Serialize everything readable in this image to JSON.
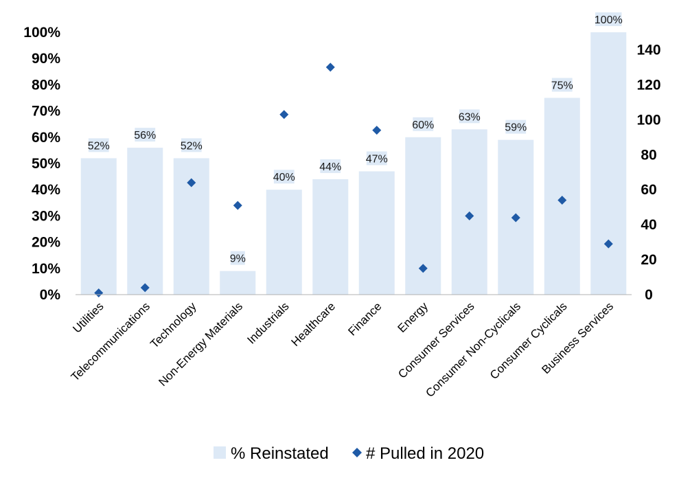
{
  "chart_data": {
    "type": "bar",
    "categories": [
      "Utilities",
      "Telecommunications",
      "Technology",
      "Non-Energy Materials",
      "Industrials",
      "Healthcare",
      "Finance",
      "Energy",
      "Consumer Services",
      "Consumer Non-Cyclicals",
      "Consumer Cyclicals",
      "Business Services"
    ],
    "series": [
      {
        "name": "% Reinstated",
        "type": "bar",
        "axis": "left",
        "color": "#dde9f6",
        "values": [
          52,
          56,
          52,
          9,
          40,
          44,
          47,
          60,
          63,
          59,
          75,
          100
        ],
        "labels": [
          "52%",
          "56%",
          "52%",
          "9%",
          "40%",
          "44%",
          "47%",
          "60%",
          "63%",
          "59%",
          "75%",
          "100%"
        ]
      },
      {
        "name": "# Pulled in 2020",
        "type": "scatter",
        "axis": "right",
        "color": "#1f5aa6",
        "marker": "diamond",
        "values": [
          1,
          4,
          64,
          51,
          103,
          130,
          94,
          15,
          45,
          44,
          54,
          29
        ]
      }
    ],
    "y_left": {
      "ylim": [
        0,
        100
      ],
      "ticks": [
        0,
        10,
        20,
        30,
        40,
        50,
        60,
        70,
        80,
        90,
        100
      ],
      "tick_labels": [
        "0%",
        "10%",
        "20%",
        "30%",
        "40%",
        "50%",
        "60%",
        "70%",
        "80%",
        "90%",
        "100%"
      ]
    },
    "y_right": {
      "ylim": [
        0,
        150
      ],
      "ticks": [
        0,
        20,
        40,
        60,
        80,
        100,
        120,
        140
      ],
      "tick_labels": [
        "0",
        "20",
        "40",
        "60",
        "80",
        "100",
        "120",
        "140"
      ]
    },
    "title": "",
    "xlabel": "",
    "ylabel": "",
    "grid": false,
    "legend": "bottom"
  }
}
